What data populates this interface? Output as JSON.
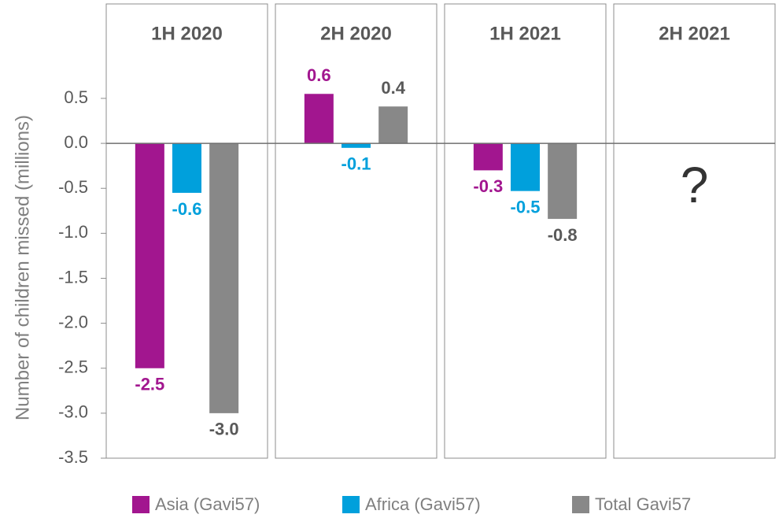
{
  "chart_data": {
    "type": "bar",
    "y_label": "Number of children missed (millions)",
    "categories": [
      "1H 2020",
      "2H 2020",
      "1H 2021",
      "2H 2021"
    ],
    "series": [
      {
        "name": "Asia (Gavi57)",
        "color": "#a2168f",
        "label_color": "#a2168f",
        "values": [
          -2.5,
          0.55,
          -0.3,
          null
        ],
        "value_labels": [
          "-2.5",
          "0.6",
          "-0.3",
          null
        ]
      },
      {
        "name": "Africa (Gavi57)",
        "color": "#00a0dc",
        "label_color": "#00a0dc",
        "values": [
          -0.55,
          -0.05,
          -0.53,
          null
        ],
        "value_labels": [
          "-0.6",
          "-0.1",
          "-0.5",
          null
        ]
      },
      {
        "name": "Total Gavi57",
        "color": "#888888",
        "label_color": "#595959",
        "values": [
          -3.0,
          0.41,
          -0.84,
          null
        ],
        "value_labels": [
          "-3.0",
          "0.4",
          "-0.8",
          null
        ]
      }
    ],
    "annotation": "?",
    "ylim": [
      -3.5,
      1.55
    ],
    "yticks": [
      0.5,
      {
        "value": 0,
        "label": "0.0"
      },
      -0.5,
      {
        "value": -1,
        "label": "-1.0"
      },
      -1.5,
      {
        "value": -2,
        "label": "-2.0"
      },
      -2.5,
      {
        "value": -3,
        "label": "-3.0"
      },
      -3.5
    ]
  }
}
